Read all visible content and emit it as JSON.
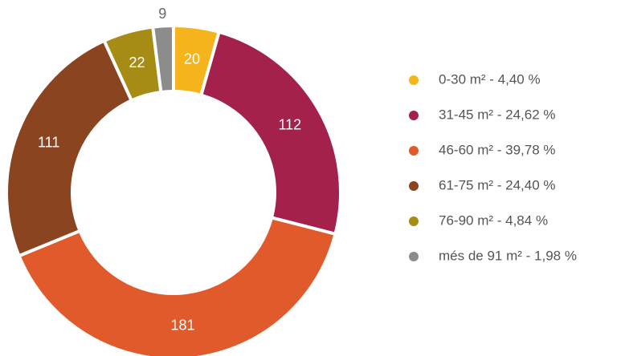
{
  "chart_data": {
    "type": "donut",
    "categories": [
      "0-30 m² - 4,40 %",
      "31-45 m² - 24,62 %",
      "46-60 m² - 39,78 %",
      "61-75 m² - 24,40 %",
      "76-90 m² - 4,84 %",
      "més de 91 m² - 1,98 %"
    ],
    "values": [
      20,
      112,
      181,
      111,
      22,
      9
    ],
    "colors": [
      "#f5b41c",
      "#a3214b",
      "#e05a2b",
      "#8a4420",
      "#a68c14",
      "#8c8c8c"
    ],
    "legend": "right"
  }
}
